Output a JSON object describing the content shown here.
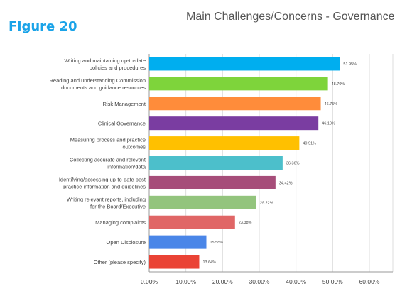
{
  "figure_label": "Figure 20",
  "chart_data": {
    "type": "bar",
    "orientation": "horizontal",
    "title": "Main Challenges/Concerns - Governance",
    "xlabel": "",
    "ylabel": "",
    "xlim": [
      0,
      60
    ],
    "grid": true,
    "x_ticks": [
      "0.00%",
      "10.00%",
      "20.00%",
      "30.00%",
      "40.00%",
      "50.00%",
      "60.00%"
    ],
    "categories": [
      [
        "Writing and maintaining up-to-date",
        "policies and procedures"
      ],
      [
        "Reading and understanding Commission",
        "documents and guidance resources"
      ],
      [
        "Risk Management"
      ],
      [
        "Clinical Governance"
      ],
      [
        "Measuring process and practice",
        "outcomes"
      ],
      [
        "Collecting accurate and relevant",
        "information/data"
      ],
      [
        "Identifying/accessing up-to-date best",
        "practice information and guidelines"
      ],
      [
        "Writing relevant reports, including",
        "for the Board/Executive"
      ],
      [
        "Managing complaints"
      ],
      [
        "Open Disclosure"
      ],
      [
        "Other (please specify)"
      ]
    ],
    "values": [
      51.95,
      48.7,
      46.75,
      46.1,
      40.91,
      36.36,
      34.42,
      29.22,
      23.38,
      15.58,
      13.64
    ],
    "value_labels": [
      "51.95%",
      "48.70%",
      "46.75%",
      "46.10%",
      "40.91%",
      "36.36%",
      "34.42%",
      "29.22%",
      "23.38%",
      "15.58%",
      "13.64%"
    ],
    "colors": [
      "#00aeef",
      "#7ed43b",
      "#ff8c3a",
      "#7a3da1",
      "#ffc000",
      "#4cbfcb",
      "#a64d79",
      "#93c47d",
      "#e06666",
      "#4a86e8",
      "#ea4335"
    ]
  }
}
